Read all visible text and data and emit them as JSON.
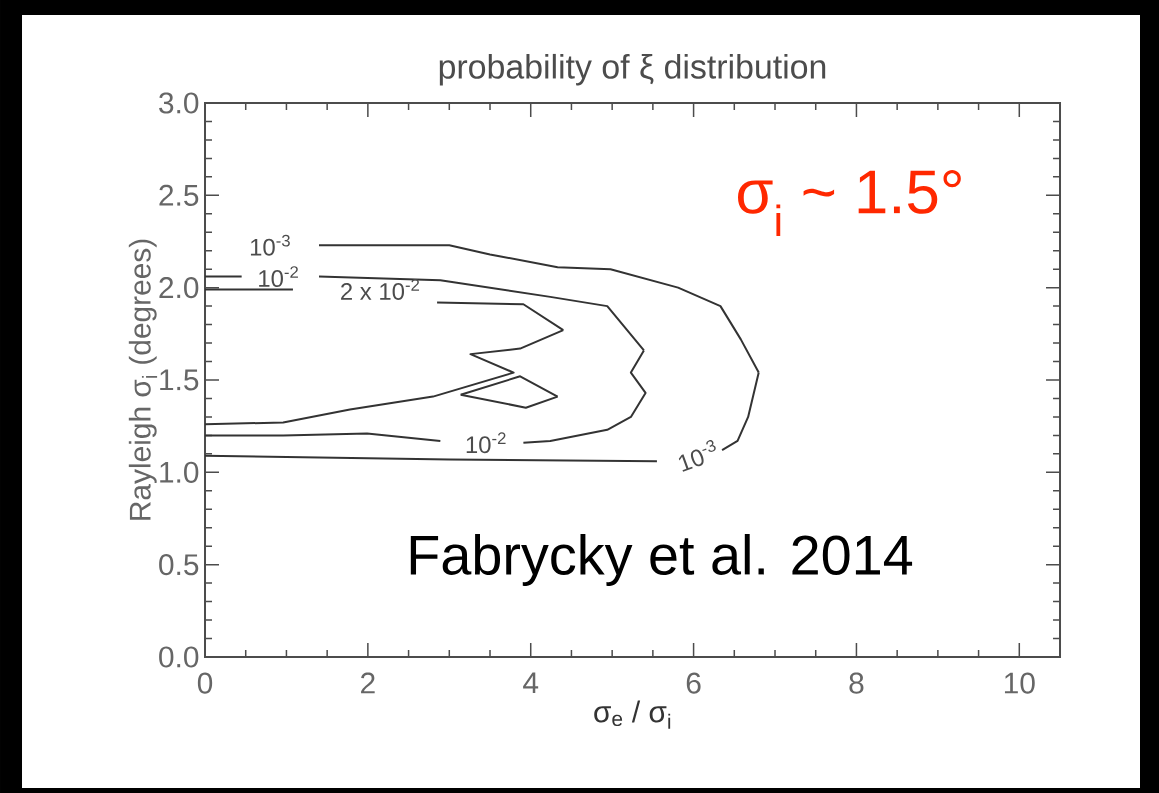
{
  "chart_data": {
    "type": "line",
    "title": "probability of ξ distribution",
    "xlabel": "σ$_{e}$ /  σ$_{i}$",
    "ylabel": "Rayleigh σ$_{i}$ (degrees)",
    "xlim": [
      0,
      10.5
    ],
    "ylim": [
      0,
      3
    ],
    "xticks": [
      0,
      2,
      4,
      6,
      8,
      10
    ],
    "yticks": [
      {
        "value": 0,
        "label": "0.0"
      },
      {
        "value": 0.5,
        "label": "0.5"
      },
      {
        "value": 1,
        "label": "1.0"
      },
      {
        "value": 1.5,
        "label": "1.5"
      },
      {
        "value": 2,
        "label": "2.0"
      },
      {
        "value": 2.5,
        "label": "2.5"
      },
      {
        "value": 3,
        "label": "3.0"
      }
    ],
    "series": [
      {
        "color": "#333333",
        "x": [
          1.4,
          3.0,
          3.5,
          4.33,
          4.98,
          5.81,
          6.33,
          6.58,
          6.8
        ],
        "values": [
          2.23,
          2.23,
          2.18,
          2.11,
          2.1,
          2.0,
          1.9,
          1.72,
          1.54
        ]
      },
      {
        "color": "#333333",
        "x": [
          0,
          3.0,
          5.55,
          6.0,
          6.35,
          6.54,
          6.67,
          6.8
        ],
        "values": [
          1.09,
          1.07,
          1.06,
          null,
          1.12,
          1.17,
          1.3,
          1.54
        ]
      },
      {
        "color": "#333333",
        "x": [
          0,
          0.45,
          0.9,
          1.4,
          2.89,
          4.24,
          4.94,
          5.39
        ],
        "values": [
          2.06,
          2.06,
          null,
          2.06,
          2.04,
          1.95,
          1.9,
          1.66
        ]
      },
      {
        "color": "#333333",
        "x": [
          0,
          0.96,
          1.99,
          2.89,
          3.45,
          3.91,
          4.24,
          4.94,
          5.23,
          5.41,
          5.23,
          5.39
        ],
        "values": [
          1.2,
          1.2,
          1.21,
          1.17,
          null,
          1.16,
          1.17,
          1.23,
          1.3,
          1.43,
          1.54,
          1.66
        ]
      },
      {
        "color": "#333333",
        "x": [
          0,
          1.08,
          1.9,
          2.85,
          3.91,
          4.4
        ],
        "values": [
          1.99,
          1.99,
          null,
          1.92,
          1.91,
          1.77
        ]
      },
      {
        "color": "#333333",
        "x": [
          0,
          0.96,
          1.78,
          2.8,
          3.79,
          3.26,
          3.87,
          4.4
        ],
        "values": [
          1.26,
          1.27,
          1.34,
          1.41,
          1.54,
          1.64,
          1.67,
          1.77
        ]
      },
      {
        "color": "#333333",
        "x": [
          3.14,
          3.87,
          4.33
        ],
        "values": [
          1.42,
          1.52,
          1.41
        ]
      },
      {
        "color": "#333333",
        "x": [
          3.14,
          3.94,
          4.33
        ],
        "values": [
          1.42,
          1.35,
          1.41
        ]
      }
    ],
    "annotations": [
      "σ$_{i}$ ~ 1.5°",
      "Fabrycky et al. 2014",
      "10$^{-3}$",
      "10$^{-2}$",
      "2 x 10$^{-2}$",
      "10$^{-2}$",
      "10$^{-3}$"
    ]
  }
}
